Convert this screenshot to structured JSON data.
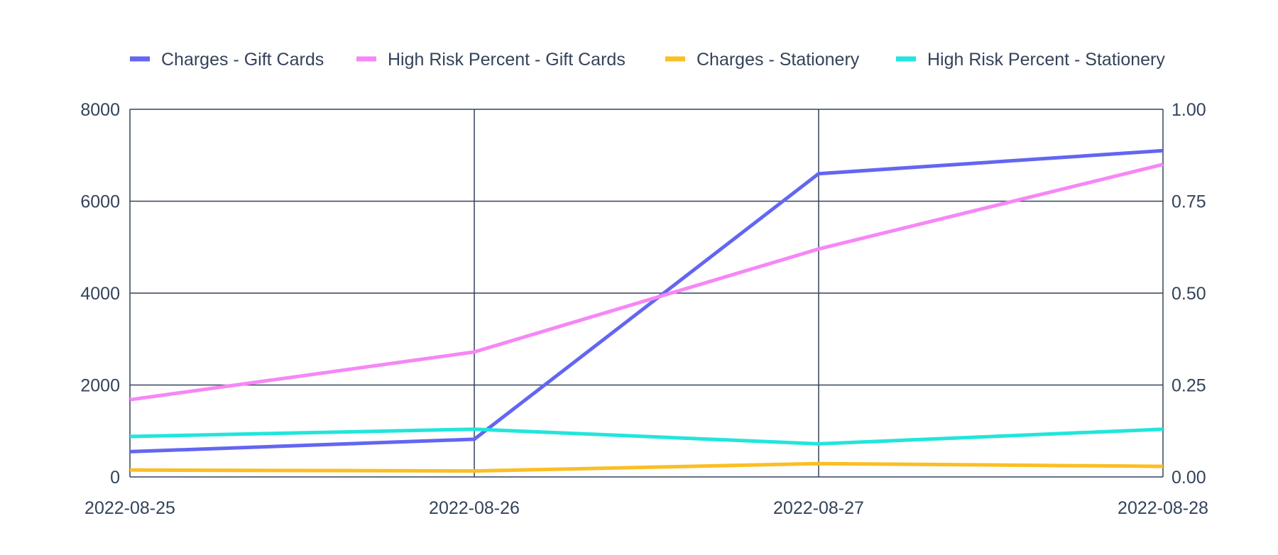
{
  "chart_data": {
    "type": "line",
    "x": [
      "2022-08-25",
      "2022-08-26",
      "2022-08-27",
      "2022-08-28"
    ],
    "series": [
      {
        "name": "Charges - Gift Cards",
        "axis": "left",
        "color": "#6366f1",
        "values": [
          550,
          820,
          6600,
          7100
        ]
      },
      {
        "name": "High Risk Percent - Gift Cards",
        "axis": "right",
        "color": "#f687f6",
        "values": [
          0.21,
          0.34,
          0.62,
          0.85
        ]
      },
      {
        "name": "Charges - Stationery",
        "axis": "left",
        "color": "#fbbf24",
        "values": [
          150,
          130,
          290,
          230
        ]
      },
      {
        "name": "High Risk Percent - Stationery",
        "axis": "right",
        "color": "#22e5dc",
        "values": [
          0.11,
          0.13,
          0.09,
          0.13
        ]
      }
    ],
    "y_left": {
      "ylim": [
        0,
        8000
      ],
      "ticks": [
        "8000",
        "6000",
        "4000",
        "2000",
        "0"
      ],
      "tick_values": [
        8000,
        6000,
        4000,
        2000,
        0
      ]
    },
    "y_right": {
      "ylim": [
        0,
        1
      ],
      "ticks": [
        "1.00",
        "0.75",
        "0.50",
        "0.25",
        "0.00"
      ],
      "tick_values": [
        1,
        0.75,
        0.5,
        0.25,
        0
      ]
    },
    "x_ticks": [
      "2022-08-25",
      "2022-08-26",
      "2022-08-27",
      "2022-08-28"
    ],
    "grid": true,
    "legend_position": "top",
    "axis_color": "#34435a"
  }
}
